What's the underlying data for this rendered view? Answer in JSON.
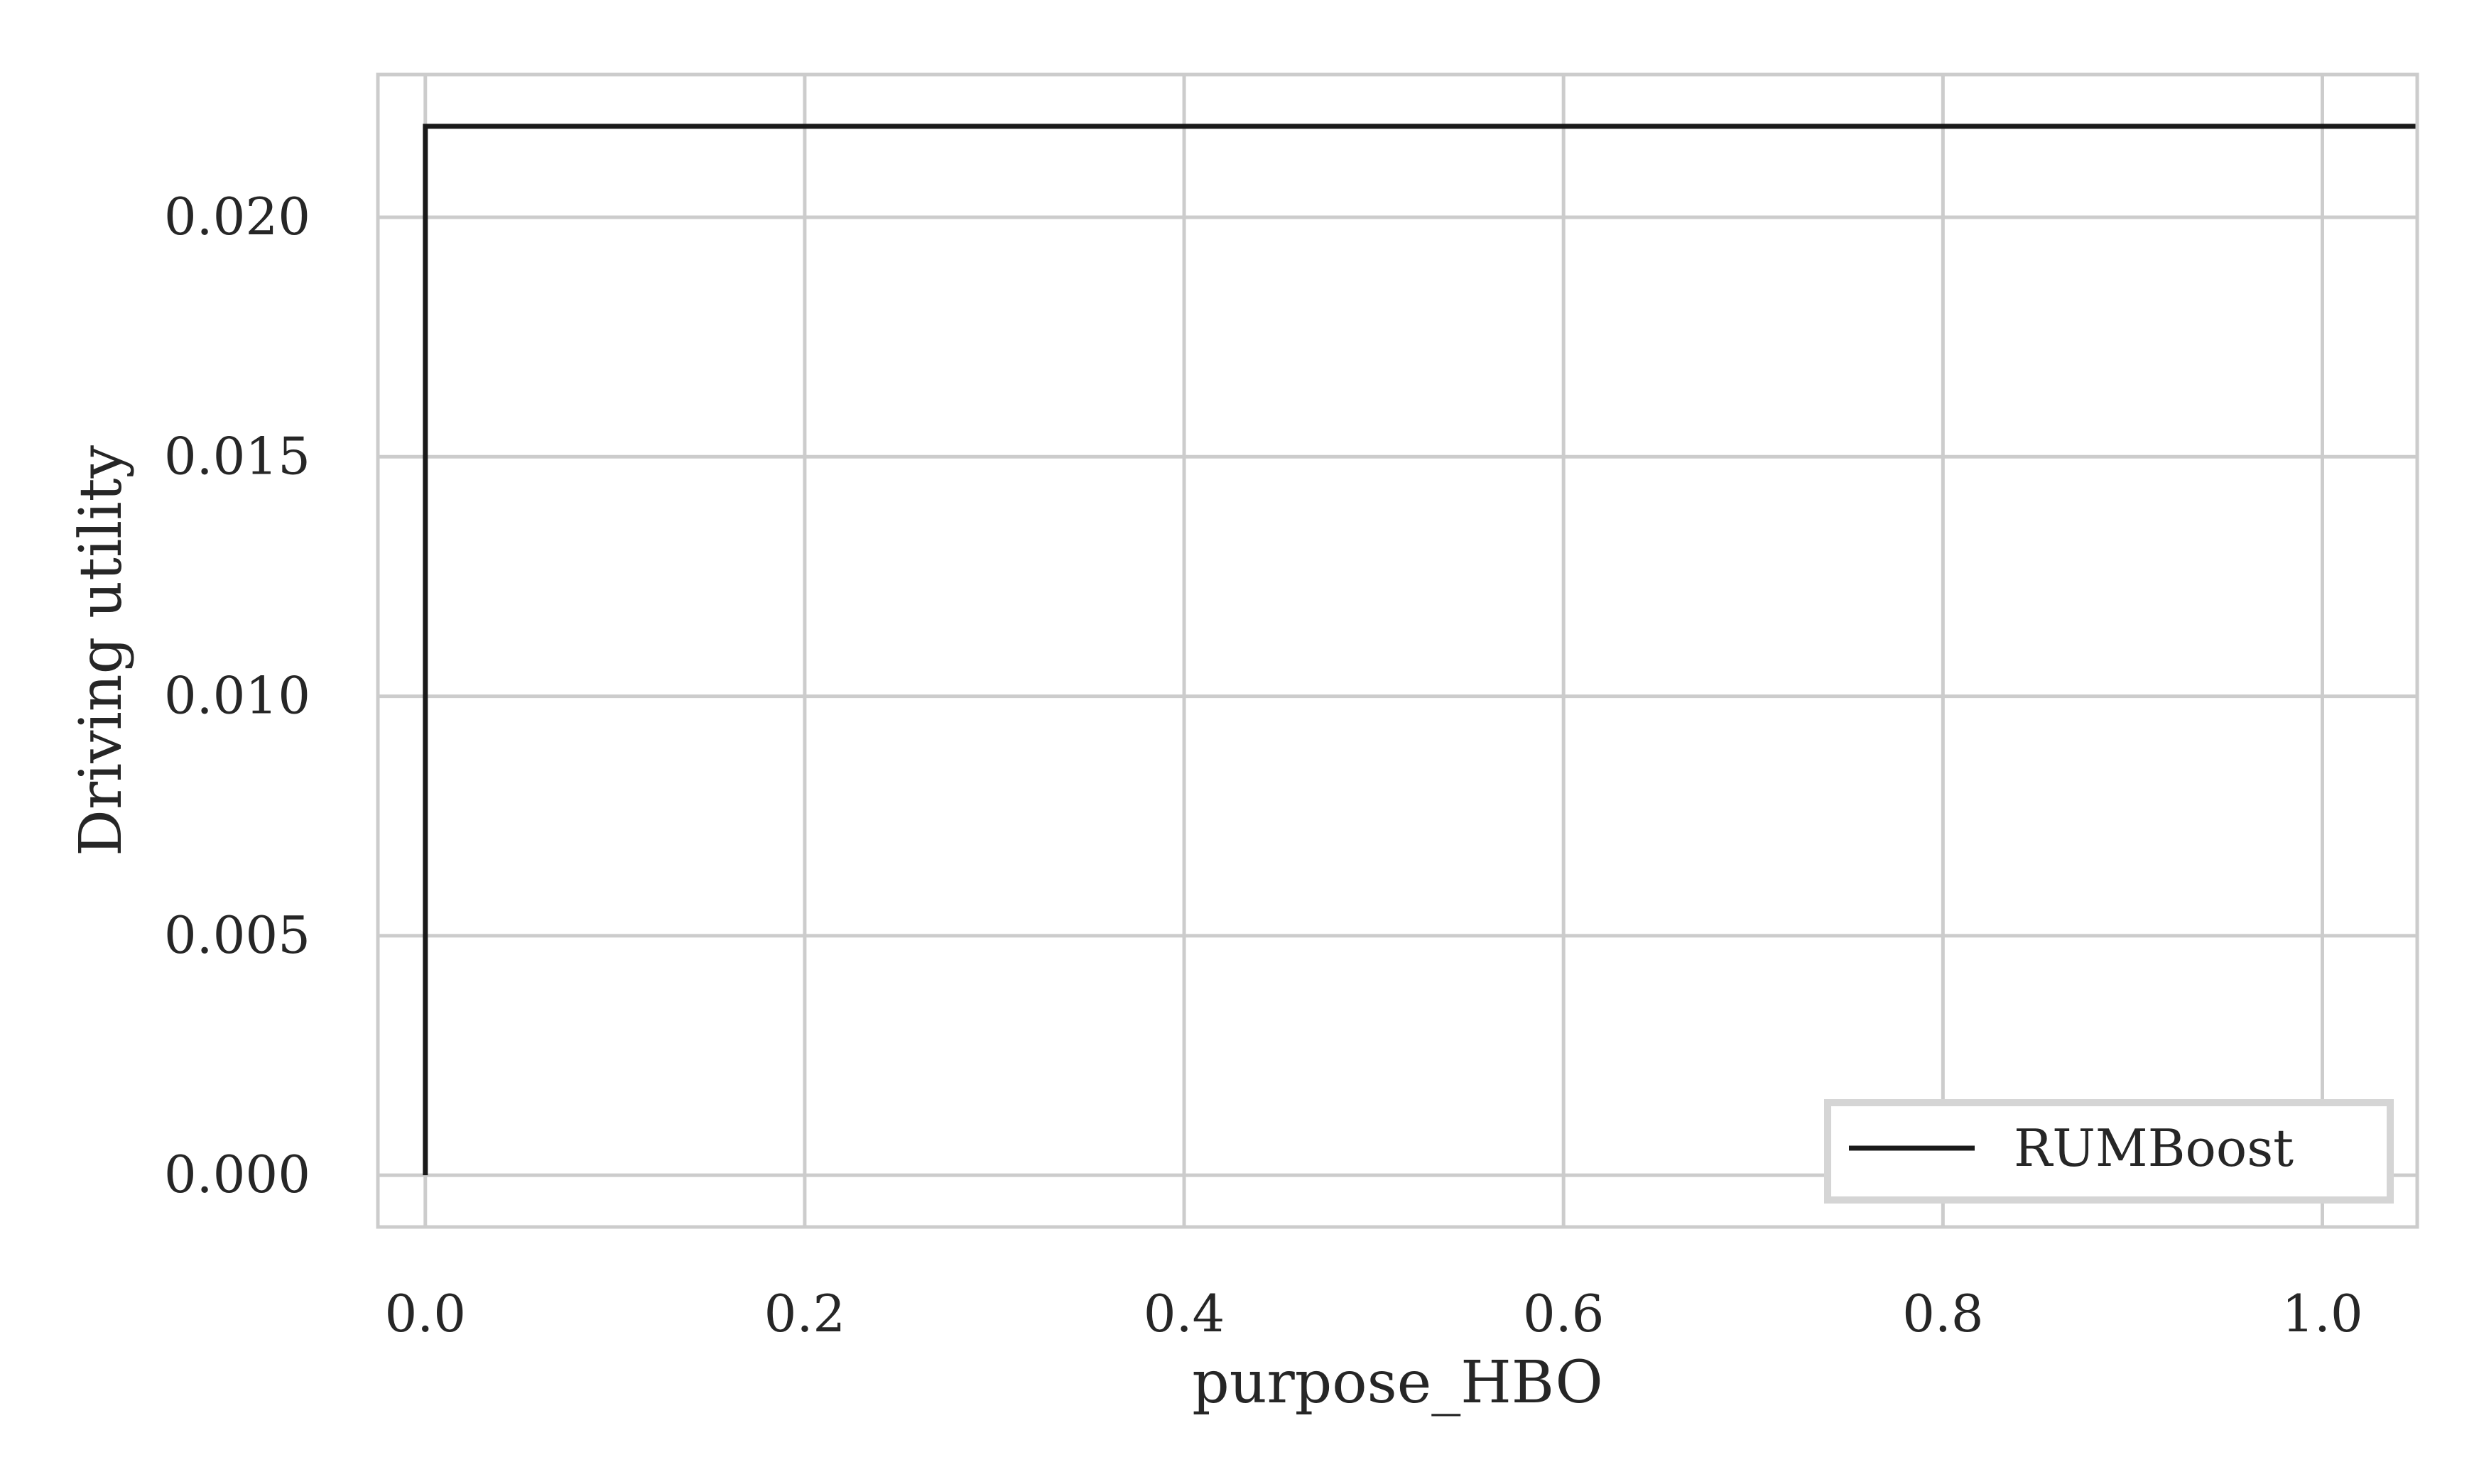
{
  "chart_data": {
    "type": "line",
    "title": "",
    "xlabel": "purpose_HBO",
    "ylabel": "Driving utility",
    "xlim": [
      -0.025,
      1.05
    ],
    "ylim": [
      -0.00108,
      0.02298
    ],
    "x_ticks": [
      0.0,
      0.2,
      0.4,
      0.6,
      0.8,
      1.0
    ],
    "x_tick_labels": [
      "0.0",
      "0.2",
      "0.4",
      "0.6",
      "0.8",
      "1.0"
    ],
    "y_ticks": [
      0.0,
      0.005,
      0.01,
      0.015,
      0.02
    ],
    "y_tick_labels": [
      "0.000",
      "0.005",
      "0.010",
      "0.015",
      "0.020"
    ],
    "grid": true,
    "legend_position": "lower-right",
    "series": [
      {
        "name": "RUMBoost",
        "color": "#1a1a1a",
        "x": [
          0.0,
          0.0,
          1.05
        ],
        "y": [
          0.0,
          0.0219,
          0.0219
        ]
      }
    ]
  },
  "colors": {
    "grid": "#cccccc",
    "frame": "#cccccc",
    "line": "#1a1a1a",
    "text": "#262626",
    "legend_border": "#d5d5d5"
  }
}
